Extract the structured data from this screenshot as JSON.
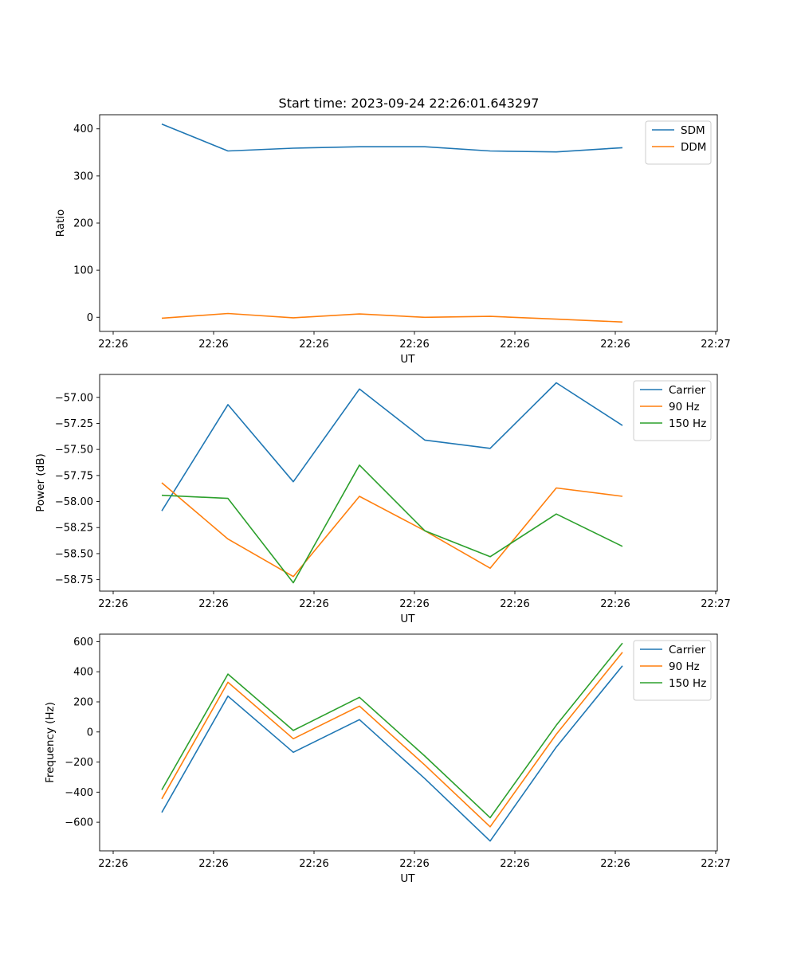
{
  "chart_data": [
    {
      "type": "line",
      "title": "Start time: 2023-09-24 22:26:01.643297",
      "xlabel": "UT",
      "ylabel": "Ratio",
      "x_tick_labels": [
        "22:26",
        "22:26",
        "22:26",
        "22:26",
        "22:26",
        "22:26",
        "22:27"
      ],
      "y_ticks": [
        0,
        100,
        200,
        300,
        400
      ],
      "ylim": [
        -30,
        430
      ],
      "legend_position": "top-right",
      "series": [
        {
          "name": "SDM",
          "color": "#1f77b4",
          "values": [
            410,
            353,
            359,
            362,
            362,
            353,
            351,
            360
          ]
        },
        {
          "name": "DDM",
          "color": "#ff7f0e",
          "values": [
            -2,
            8,
            -1,
            7,
            0,
            2,
            -4,
            -10
          ]
        }
      ]
    },
    {
      "type": "line",
      "title": "",
      "xlabel": "UT",
      "ylabel": "Power (dB)",
      "x_tick_labels": [
        "22:26",
        "22:26",
        "22:26",
        "22:26",
        "22:26",
        "22:26",
        "22:27"
      ],
      "y_ticks": [
        -58.75,
        -58.5,
        -58.25,
        -58.0,
        -57.75,
        -57.5,
        -57.25,
        -57.0
      ],
      "y_tick_labels": [
        "−58.75",
        "−58.50",
        "−58.25",
        "−58.00",
        "−57.75",
        "−57.50",
        "−57.25",
        "−57.00"
      ],
      "ylim": [
        -58.86,
        -56.78
      ],
      "legend_position": "top-right",
      "series": [
        {
          "name": "Carrier",
          "color": "#1f77b4",
          "values": [
            -58.09,
            -57.07,
            -57.81,
            -56.92,
            -57.41,
            -57.49,
            -56.86,
            -57.27
          ]
        },
        {
          "name": "90 Hz",
          "color": "#ff7f0e",
          "values": [
            -57.82,
            -58.36,
            -58.72,
            -57.95,
            -58.28,
            -58.64,
            -57.87,
            -57.95
          ]
        },
        {
          "name": "150 Hz",
          "color": "#2ca02c",
          "values": [
            -57.94,
            -57.97,
            -58.78,
            -57.65,
            -58.28,
            -58.53,
            -58.12,
            -58.43
          ]
        }
      ]
    },
    {
      "type": "line",
      "title": "",
      "xlabel": "UT",
      "ylabel": "Frequency (Hz)",
      "x_tick_labels": [
        "22:26",
        "22:26",
        "22:26",
        "22:26",
        "22:26",
        "22:26",
        "22:27"
      ],
      "y_ticks": [
        -600,
        -400,
        -200,
        0,
        200,
        400,
        600
      ],
      "y_tick_labels": [
        "−600",
        "−400",
        "−200",
        "0",
        "200",
        "400",
        "600"
      ],
      "ylim": [
        -790,
        650
      ],
      "legend_position": "top-right",
      "series": [
        {
          "name": "Carrier",
          "color": "#1f77b4",
          "values": [
            -535,
            238,
            -135,
            82,
            -310,
            -725,
            -100,
            440
          ]
        },
        {
          "name": "90 Hz",
          "color": "#ff7f0e",
          "values": [
            -445,
            330,
            -45,
            172,
            -220,
            -630,
            -15,
            530
          ]
        },
        {
          "name": "150 Hz",
          "color": "#2ca02c",
          "values": [
            -385,
            385,
            10,
            230,
            -160,
            -570,
            45,
            590
          ]
        }
      ]
    }
  ]
}
